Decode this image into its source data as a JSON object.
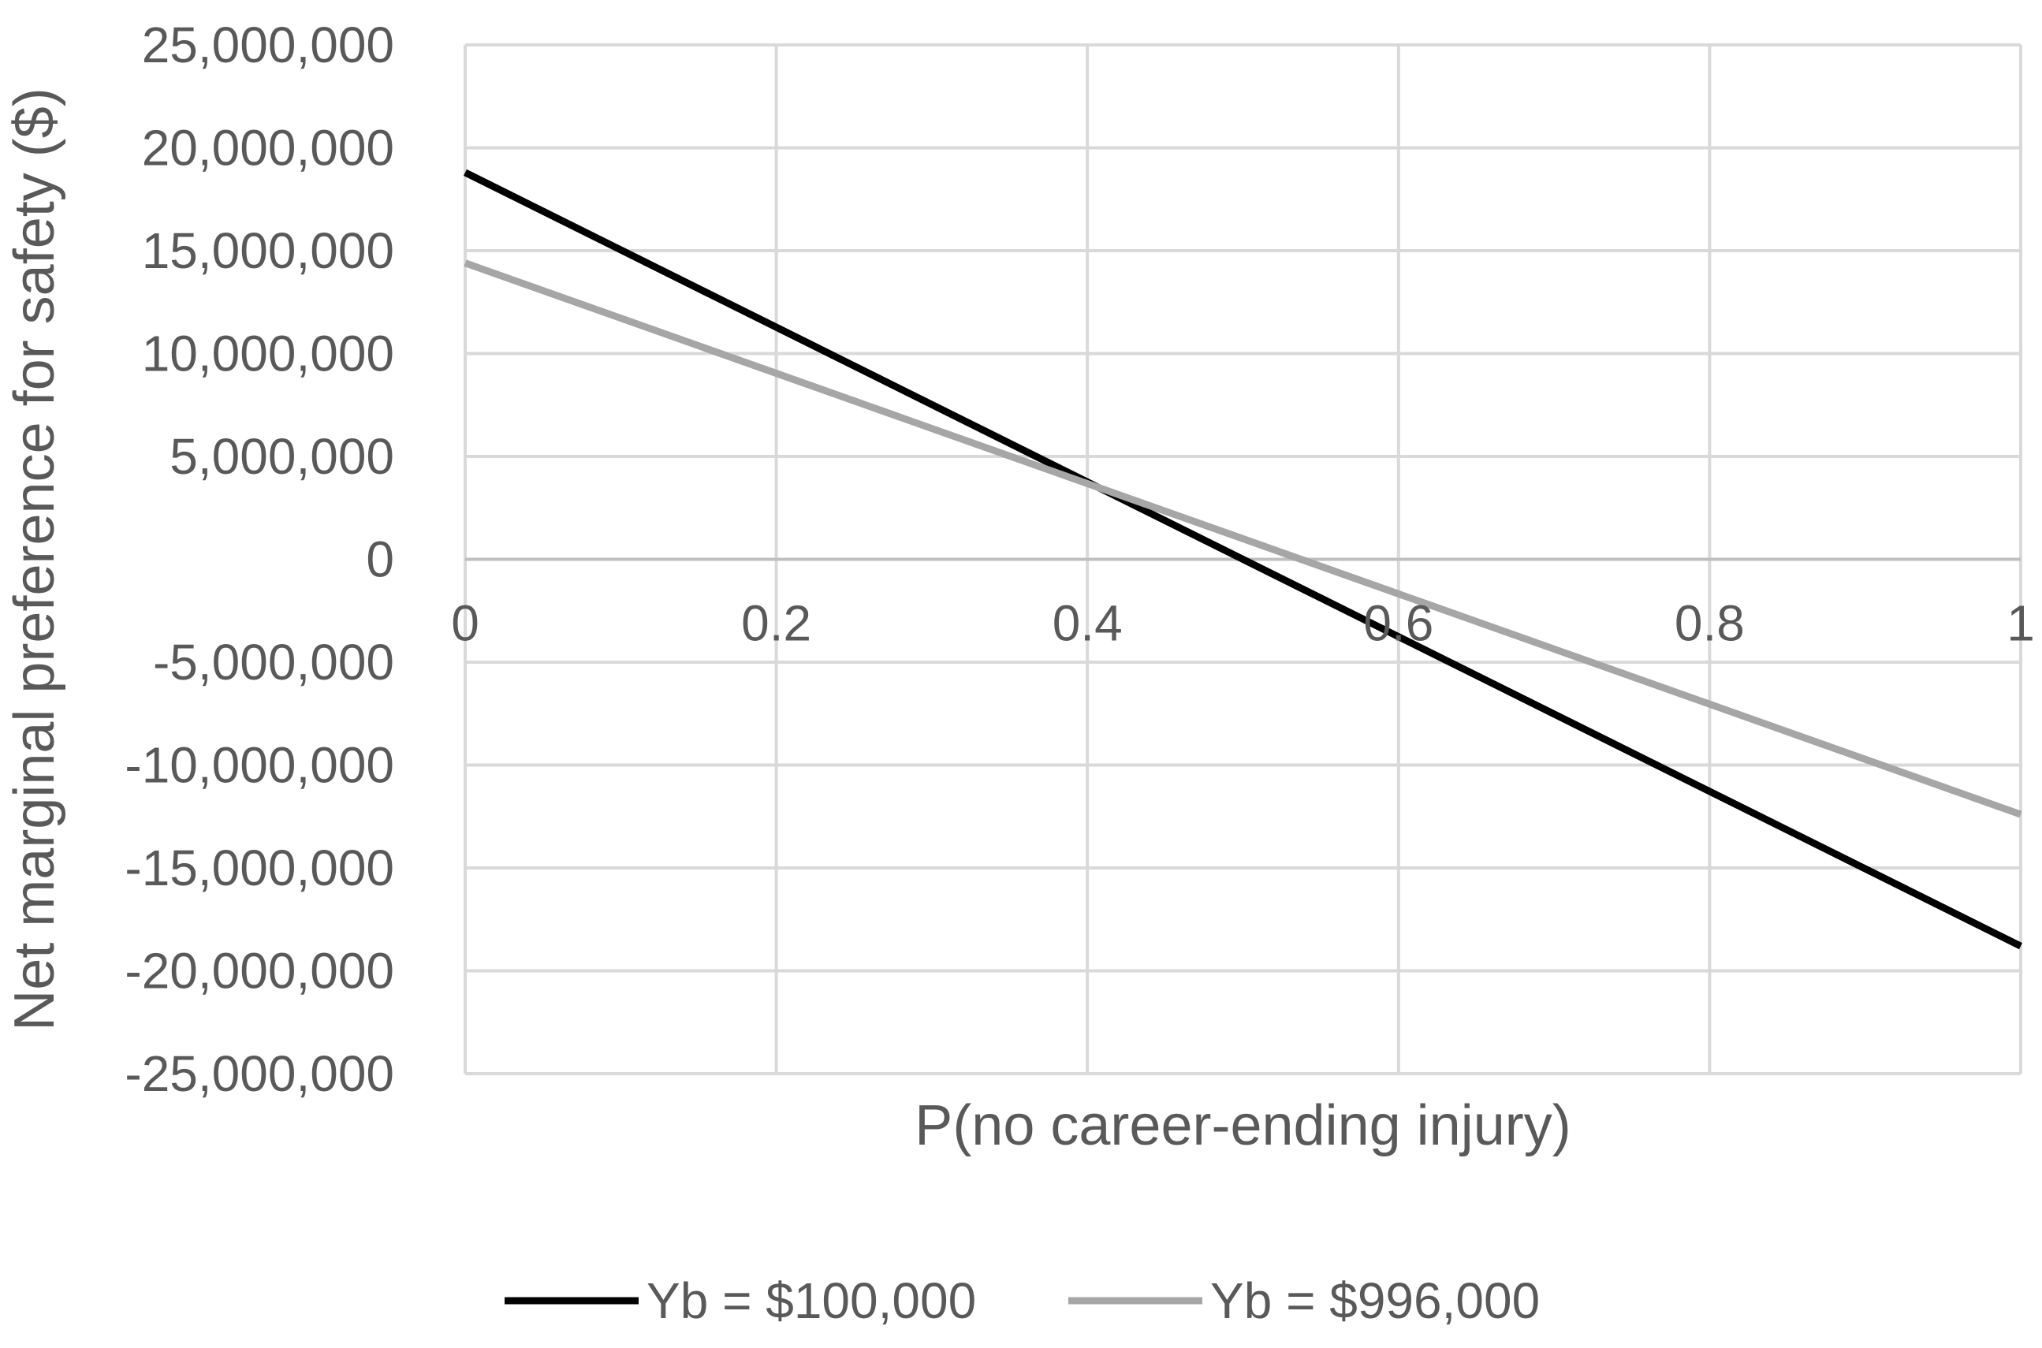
{
  "chart_data": {
    "type": "line",
    "title": "",
    "xlabel": "P(no career-ending injury)",
    "ylabel": "Net marginal preference for safety ($)",
    "xlim": [
      0,
      1
    ],
    "ylim": [
      -25000000,
      25000000
    ],
    "x_ticks": [
      0,
      0.2,
      0.4,
      0.6,
      0.8,
      1
    ],
    "x_tick_labels": [
      "0",
      "0.2",
      "0.4",
      "0.6",
      "0.8",
      "1"
    ],
    "y_ticks": [
      25000000,
      20000000,
      15000000,
      10000000,
      5000000,
      0,
      -5000000,
      -10000000,
      -15000000,
      -20000000,
      -25000000
    ],
    "y_tick_labels": [
      "25,000,000",
      "20,000,000",
      "15,000,000",
      "10,000,000",
      "5,000,000",
      "0",
      "-5,000,000",
      "-10,000,000",
      "-15,000,000",
      "-20,000,000",
      "-25,000,000"
    ],
    "grid": true,
    "legend_position": "bottom",
    "series": [
      {
        "name": "Yb = $100,000",
        "color": "#000000",
        "x": [
          0,
          1
        ],
        "y": [
          18800000,
          -18800000
        ]
      },
      {
        "name": "Yb = $996,000",
        "color": "#a6a6a6",
        "x": [
          0,
          1
        ],
        "y": [
          14400000,
          -12400000
        ]
      }
    ],
    "colors": {
      "grid": "#d9d9d9",
      "text": "#595959"
    }
  }
}
